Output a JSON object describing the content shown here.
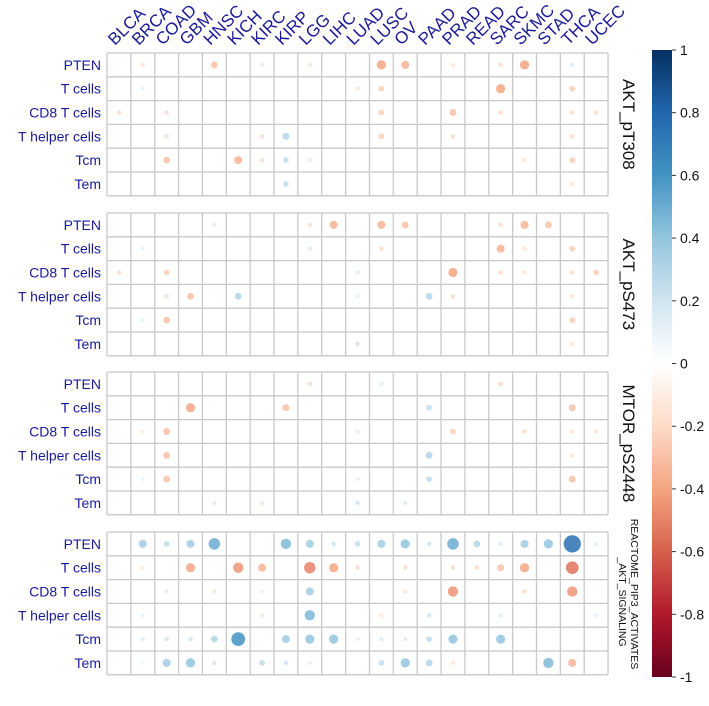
{
  "chart_data": {
    "type": "heatmap",
    "subtype": "correlation-dot-matrix",
    "columns": [
      "BLCA",
      "BRCA",
      "COAD",
      "GBM",
      "HNSC",
      "KICH",
      "KIRC",
      "KIRP",
      "LGG",
      "LIHC",
      "LUAD",
      "LUSC",
      "OV",
      "PAAD",
      "PRAD",
      "READ",
      "SARC",
      "SKMC",
      "STAD",
      "THCA",
      "UCEC"
    ],
    "row_labels": [
      "PTEN",
      "T cells",
      "CD8 T cells",
      "T helper cells",
      "Tcm",
      "Tem"
    ],
    "colorbar": {
      "range": [
        -1,
        1
      ],
      "ticks": [
        "1",
        "0.8",
        "0.6",
        "0.4",
        "0.2",
        "0",
        "-0.2",
        "-0.4",
        "-0.6",
        "-0.8",
        "-1"
      ],
      "tick_values": [
        1,
        0.8,
        0.6,
        0.4,
        0.2,
        0,
        -0.2,
        -0.4,
        -0.6,
        -0.8,
        -1
      ],
      "colors": [
        "#67001F",
        "#B2182B",
        "#D6604D",
        "#F4A582",
        "#FDDBC7",
        "#FFFFFF",
        "#D1E5F0",
        "#92C5DE",
        "#4393C3",
        "#2166AC",
        "#053061"
      ]
    },
    "panels": [
      {
        "label": [
          "AKT_pT308"
        ],
        "values": [
          [
            null,
            -0.15,
            null,
            null,
            -0.3,
            null,
            -0.15,
            null,
            -0.15,
            null,
            null,
            -0.4,
            -0.35,
            null,
            -0.15,
            null,
            -0.2,
            -0.4,
            null,
            0.15,
            null
          ],
          [
            null,
            0.1,
            null,
            null,
            null,
            null,
            null,
            null,
            null,
            null,
            -0.15,
            -0.25,
            null,
            null,
            null,
            null,
            -0.4,
            null,
            null,
            -0.25,
            null
          ],
          [
            -0.2,
            null,
            -0.2,
            null,
            null,
            null,
            null,
            null,
            null,
            null,
            null,
            -0.25,
            null,
            null,
            -0.3,
            null,
            -0.2,
            null,
            null,
            -0.2,
            -0.2
          ],
          [
            null,
            null,
            -0.2,
            null,
            null,
            null,
            -0.2,
            0.3,
            null,
            null,
            null,
            -0.25,
            null,
            null,
            -0.2,
            null,
            null,
            null,
            null,
            -0.2,
            null
          ],
          [
            null,
            null,
            -0.3,
            null,
            null,
            -0.35,
            -0.2,
            0.25,
            -0.15,
            null,
            null,
            null,
            null,
            null,
            null,
            null,
            null,
            -0.15,
            null,
            -0.25,
            null
          ],
          [
            null,
            null,
            null,
            null,
            null,
            null,
            null,
            0.25,
            null,
            null,
            null,
            null,
            null,
            null,
            null,
            null,
            null,
            null,
            null,
            -0.15,
            null
          ]
        ]
      },
      {
        "label": [
          "AKT_pS473"
        ],
        "values": [
          [
            null,
            null,
            null,
            null,
            -0.15,
            null,
            null,
            null,
            -0.2,
            -0.35,
            null,
            -0.35,
            -0.3,
            null,
            null,
            null,
            -0.2,
            -0.35,
            -0.3,
            null,
            null
          ],
          [
            null,
            0.1,
            null,
            null,
            null,
            null,
            null,
            null,
            0.15,
            null,
            null,
            -0.2,
            null,
            null,
            null,
            null,
            -0.35,
            -0.15,
            null,
            -0.25,
            null
          ],
          [
            -0.2,
            null,
            -0.25,
            null,
            null,
            null,
            null,
            null,
            null,
            null,
            0.15,
            null,
            null,
            null,
            -0.4,
            null,
            -0.2,
            -0.15,
            null,
            -0.2,
            -0.25
          ],
          [
            null,
            null,
            -0.2,
            -0.3,
            null,
            0.3,
            null,
            null,
            null,
            null,
            0.1,
            null,
            null,
            0.3,
            -0.2,
            null,
            null,
            null,
            null,
            -0.15,
            null
          ],
          [
            null,
            0.1,
            -0.3,
            null,
            null,
            null,
            null,
            null,
            null,
            null,
            null,
            null,
            null,
            null,
            null,
            null,
            null,
            null,
            null,
            -0.25,
            null
          ],
          [
            null,
            null,
            null,
            null,
            null,
            null,
            null,
            null,
            null,
            null,
            0.2,
            null,
            null,
            null,
            null,
            null,
            null,
            null,
            null,
            -0.15,
            null
          ]
        ]
      },
      {
        "label": [
          "MTOR_pS2448"
        ],
        "values": [
          [
            null,
            null,
            null,
            null,
            null,
            null,
            null,
            null,
            -0.2,
            null,
            null,
            0.12,
            null,
            null,
            null,
            null,
            -0.2,
            null,
            null,
            null,
            null
          ],
          [
            null,
            null,
            null,
            -0.4,
            null,
            null,
            null,
            -0.3,
            null,
            null,
            null,
            null,
            null,
            0.25,
            null,
            null,
            null,
            null,
            null,
            -0.3,
            null
          ],
          [
            null,
            -0.1,
            -0.3,
            null,
            null,
            null,
            null,
            null,
            null,
            null,
            0.12,
            null,
            null,
            null,
            -0.25,
            null,
            null,
            -0.2,
            null,
            -0.15,
            -0.15
          ],
          [
            null,
            null,
            -0.3,
            null,
            null,
            null,
            null,
            null,
            null,
            null,
            null,
            null,
            null,
            0.3,
            null,
            null,
            null,
            null,
            null,
            -0.15,
            null
          ],
          [
            null,
            0.1,
            -0.3,
            null,
            null,
            null,
            null,
            null,
            null,
            null,
            0.12,
            null,
            null,
            0.25,
            null,
            null,
            null,
            null,
            null,
            -0.3,
            null
          ],
          [
            null,
            null,
            null,
            null,
            0.15,
            null,
            -0.15,
            null,
            null,
            null,
            0.2,
            null,
            0.15,
            null,
            null,
            null,
            null,
            null,
            null,
            null,
            null
          ]
        ]
      },
      {
        "label": [
          "REACTOME_PIP3_ACTIVATES",
          "_AKT_SIGNALING"
        ],
        "values": [
          [
            null,
            0.35,
            0.25,
            0.35,
            0.5,
            null,
            null,
            0.45,
            0.35,
            0.2,
            0.25,
            0.35,
            0.4,
            0.2,
            0.5,
            0.3,
            0.15,
            0.35,
            0.4,
            0.75,
            0.12
          ],
          [
            null,
            -0.12,
            null,
            -0.4,
            null,
            -0.45,
            -0.35,
            null,
            -0.5,
            -0.4,
            -0.2,
            null,
            -0.2,
            null,
            -0.2,
            -0.2,
            -0.3,
            -0.4,
            null,
            -0.55,
            null
          ],
          [
            null,
            null,
            0.15,
            null,
            -0.15,
            null,
            -0.1,
            null,
            0.35,
            null,
            null,
            null,
            -0.15,
            null,
            -0.45,
            null,
            null,
            -0.2,
            null,
            -0.45,
            null
          ],
          [
            null,
            0.1,
            null,
            null,
            null,
            null,
            -0.15,
            null,
            0.45,
            null,
            null,
            -0.12,
            null,
            0.2,
            null,
            null,
            0.15,
            null,
            null,
            null,
            0.1
          ],
          [
            null,
            0.15,
            0.2,
            0.2,
            0.3,
            0.6,
            null,
            0.35,
            0.4,
            0.4,
            0.12,
            0.15,
            0.15,
            0.25,
            0.4,
            null,
            0.4,
            null,
            null,
            null,
            null
          ],
          [
            null,
            0.08,
            0.35,
            0.4,
            0.2,
            null,
            0.25,
            0.2,
            0.12,
            null,
            null,
            0.25,
            0.4,
            0.3,
            -0.15,
            null,
            null,
            null,
            0.45,
            -0.35,
            null
          ]
        ]
      }
    ]
  }
}
